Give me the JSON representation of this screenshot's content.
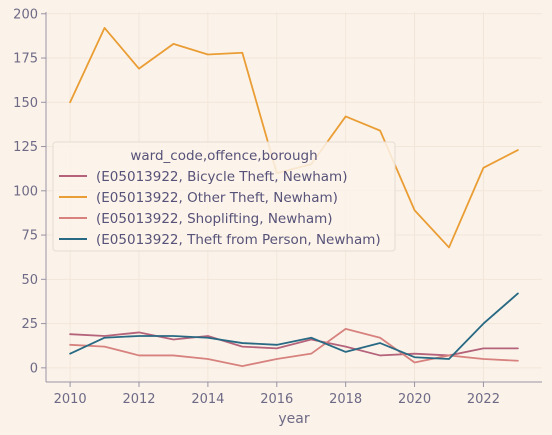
{
  "chart_data": {
    "type": "line",
    "x": [
      2010,
      2011,
      2012,
      2013,
      2014,
      2015,
      2016,
      2017,
      2018,
      2019,
      2020,
      2021,
      2022,
      2023
    ],
    "series": [
      {
        "name": "(E05013922, Bicycle Theft, Newham)",
        "color": "#b4637a",
        "values": [
          19,
          18,
          20,
          16,
          18,
          12,
          11,
          16,
          12,
          7,
          8,
          7,
          11,
          11
        ]
      },
      {
        "name": "(E05013922, Other Theft, Newham)",
        "color": "#ea9d34",
        "values": [
          150,
          192,
          169,
          183,
          177,
          178,
          110,
          115,
          142,
          134,
          89,
          68,
          113,
          123
        ]
      },
      {
        "name": "(E05013922, Shoplifting, Newham)",
        "color": "#d7827e",
        "values": [
          13,
          12,
          7,
          7,
          5,
          1,
          5,
          8,
          22,
          17,
          3,
          7,
          5,
          4
        ]
      },
      {
        "name": "(E05013922, Theft from Person, Newham)",
        "color": "#286983",
        "values": [
          8,
          17,
          18,
          18,
          17,
          14,
          13,
          17,
          9,
          14,
          6,
          5,
          25,
          42
        ]
      }
    ],
    "xlabel": "year",
    "ylabel": "",
    "xlim": [
      2009.3,
      2023.7
    ],
    "ylim": [
      -8,
      201
    ],
    "xticks": [
      2010,
      2012,
      2014,
      2016,
      2018,
      2020,
      2022
    ],
    "yticks": [
      0,
      25,
      50,
      75,
      100,
      125,
      150,
      175,
      200
    ],
    "legend": {
      "title": "ward_code,offence,borough",
      "placement": "center-left"
    },
    "grid": true,
    "colors": {
      "background": "#fbf3ea",
      "grid": "#f2e6d8",
      "axis": "#9893a5",
      "text": "#6e6a86"
    }
  }
}
